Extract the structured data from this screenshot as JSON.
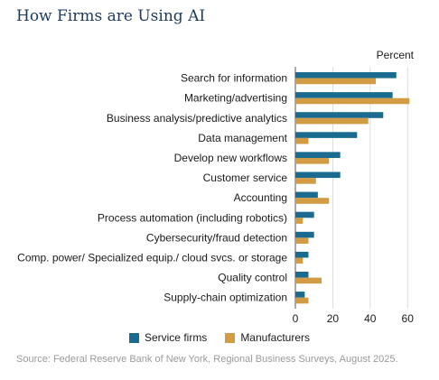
{
  "title": "How Firms are Using AI",
  "source": "Source: Federal Reserve Bank of New York, Regional Business Surveys, August 2025.",
  "chart_data": {
    "type": "bar",
    "orientation": "horizontal",
    "unit_label": "Percent",
    "categories": [
      "Search for information",
      "Marketing/advertising",
      "Business analysis/predictive analytics",
      "Data management",
      "Develop new workflows",
      "Customer service",
      "Accounting",
      "Process automation (including robotics)",
      "Cybersecurity/fraud detection",
      "Comp. power/ Specialized equip./ cloud svcs. or storage",
      "Quality control",
      "Supply-chain optimization"
    ],
    "series": [
      {
        "name": "Service firms",
        "color": "#1a6b8f",
        "values": [
          54,
          52,
          47,
          33,
          24,
          24,
          12,
          10,
          10,
          7,
          7,
          5
        ]
      },
      {
        "name": "Manufacturers",
        "color": "#d29c45",
        "values": [
          43,
          61,
          39,
          7,
          18,
          11,
          18,
          4,
          7,
          4,
          14,
          7
        ]
      }
    ],
    "xlim": [
      0,
      62
    ],
    "xticks": [
      0,
      20,
      40,
      60
    ],
    "grid": true,
    "legend_position": "bottom"
  }
}
